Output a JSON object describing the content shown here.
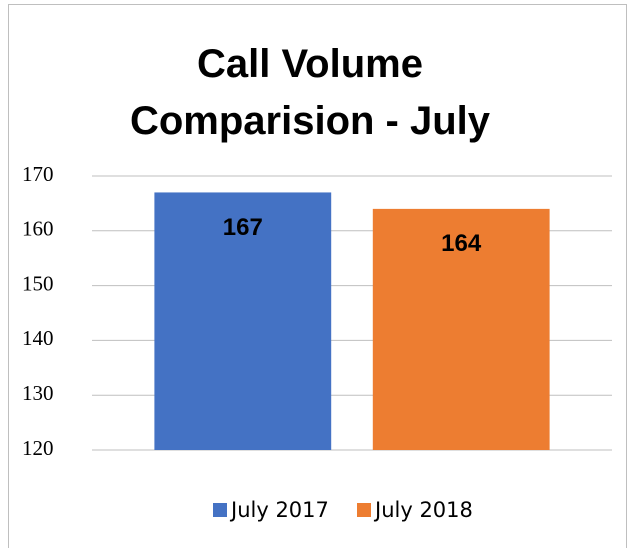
{
  "chart_data": {
    "type": "bar",
    "title": "Call Volume Comparision - July",
    "categories": [
      null
    ],
    "series": [
      {
        "name": "July 2017",
        "color": "#4472c4",
        "values": [
          167
        ]
      },
      {
        "name": "July 2018",
        "color": "#ed7d31",
        "values": [
          164
        ]
      }
    ],
    "ylim": [
      120,
      170
    ],
    "yticks": [
      120,
      130,
      140,
      150,
      160,
      170
    ],
    "grid": true,
    "legend": "bottom"
  }
}
